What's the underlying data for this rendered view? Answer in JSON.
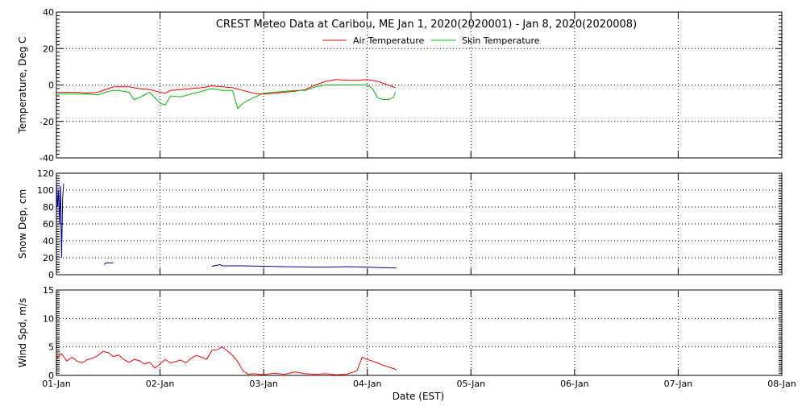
{
  "title": "CREST Meteo Data at Caribou, ME   Jan  1, 2020(2020001) - Jan  8, 2020(2020008)",
  "xlabel": "Date (EST)",
  "x_ticks": [
    "01-Jan",
    "02-Jan",
    "03-Jan",
    "04-Jan",
    "05-Jan",
    "06-Jan",
    "07-Jan",
    "08-Jan"
  ],
  "colors": {
    "air": "#ff0000",
    "skin": "#00bb00",
    "snow": "#000099",
    "wind": "#ff0000",
    "grid": "#000000"
  },
  "chart_data": [
    {
      "type": "line",
      "ylabel": "Temperature, Deg C",
      "ylim": [
        -40,
        40
      ],
      "y_ticks": [
        "40",
        "20",
        "0",
        "-20",
        "-40"
      ],
      "x_unit": "days since 01-Jan",
      "legend": "top-center",
      "series": [
        {
          "name": "Air Temperature",
          "x": [
            0.0,
            0.1,
            0.2,
            0.3,
            0.4,
            0.5,
            0.55,
            0.6,
            0.7,
            0.8,
            0.9,
            1.0,
            1.05,
            1.1,
            1.2,
            1.3,
            1.4,
            1.5,
            1.6,
            1.7,
            1.8,
            1.9,
            2.0,
            2.1,
            2.2,
            2.3,
            2.4,
            2.5,
            2.6,
            2.7,
            2.8,
            2.9,
            3.0,
            3.1,
            3.2,
            3.27
          ],
          "y": [
            -4,
            -4,
            -4,
            -4.5,
            -4,
            -2,
            -1,
            -1,
            -1,
            -2,
            -2.5,
            -4,
            -4.5,
            -3,
            -2.5,
            -2,
            -1.5,
            -0.5,
            -1,
            -1.5,
            -3,
            -4.5,
            -5,
            -4.5,
            -4,
            -3.5,
            -2.5,
            0,
            2,
            3,
            2.5,
            2.5,
            3,
            2,
            0,
            -1.5
          ]
        },
        {
          "name": "Skin Temperature",
          "x": [
            0.0,
            0.1,
            0.2,
            0.3,
            0.4,
            0.5,
            0.55,
            0.6,
            0.7,
            0.75,
            0.8,
            0.9,
            1.0,
            1.05,
            1.1,
            1.2,
            1.3,
            1.4,
            1.5,
            1.6,
            1.7,
            1.75,
            1.8,
            1.9,
            2.0,
            2.1,
            2.2,
            2.3,
            2.4,
            2.5,
            2.6,
            2.7,
            2.8,
            2.9,
            3.0,
            3.05,
            3.1,
            3.15,
            3.2,
            3.25,
            3.27
          ],
          "y": [
            -5,
            -5,
            -5,
            -5,
            -5.5,
            -3.5,
            -3,
            -3,
            -4,
            -8,
            -7,
            -4,
            -10,
            -11,
            -6,
            -6.5,
            -5,
            -3.5,
            -2,
            -3,
            -3,
            -13,
            -10,
            -7,
            -4.5,
            -4,
            -3.5,
            -3,
            -3,
            -1,
            0,
            0,
            0,
            0,
            0,
            -2,
            -7,
            -8,
            -8,
            -7,
            -4
          ]
        }
      ]
    },
    {
      "type": "line",
      "ylabel": "Snow Dep, cm",
      "ylim": [
        0,
        120
      ],
      "y_ticks": [
        "120",
        "100",
        "80",
        "60",
        "40",
        "20",
        "0"
      ],
      "x_unit": "days since 01-Jan",
      "series": [
        {
          "x": [
            0.0,
            0.01,
            0.02,
            0.03,
            0.04,
            0.05,
            0.06,
            0.07
          ],
          "y": [
            110,
            80,
            100,
            60,
            105,
            20,
            90,
            108
          ]
        },
        {
          "x": [
            0.46,
            0.48,
            0.5,
            0.55
          ],
          "y": [
            12,
            14,
            14,
            14
          ]
        },
        {
          "x": [
            1.5,
            1.55,
            1.58,
            1.6,
            1.8,
            2.0,
            2.2,
            2.5,
            2.6,
            2.8,
            3.0,
            3.1,
            3.28
          ],
          "y": [
            10,
            11,
            12,
            10.5,
            10.5,
            10,
            9.5,
            9,
            9,
            9.5,
            9,
            8.5,
            8
          ]
        }
      ]
    },
    {
      "type": "line",
      "ylabel": "Wind Spd, m/s",
      "ylim": [
        0,
        15
      ],
      "y_ticks": [
        "15",
        "10",
        "5",
        "0"
      ],
      "x_unit": "days since 01-Jan",
      "series": [
        {
          "x": [
            0.0,
            0.05,
            0.1,
            0.15,
            0.2,
            0.25,
            0.3,
            0.35,
            0.4,
            0.45,
            0.5,
            0.55,
            0.6,
            0.65,
            0.7,
            0.75,
            0.8,
            0.85,
            0.9,
            0.95,
            1.0,
            1.05,
            1.1,
            1.15,
            1.2,
            1.25,
            1.3,
            1.35,
            1.4,
            1.45,
            1.5,
            1.55,
            1.6,
            1.65,
            1.7,
            1.75,
            1.8,
            1.85,
            1.9,
            2.0,
            2.1,
            2.2,
            2.3,
            2.4,
            2.5,
            2.6,
            2.7,
            2.8,
            2.9,
            2.95,
            3.0,
            3.05,
            3.1,
            3.15,
            3.2,
            3.25,
            3.28
          ],
          "y": [
            3,
            3.8,
            2.5,
            3.2,
            2.5,
            2.2,
            2.8,
            3.0,
            3.5,
            4.2,
            4.0,
            3.3,
            3.6,
            2.8,
            2.3,
            2.8,
            2.6,
            2.0,
            2.3,
            1.3,
            2.0,
            2.8,
            2.2,
            2.4,
            2.7,
            2.2,
            3.0,
            3.5,
            3.2,
            2.8,
            4.4,
            4.5,
            5.0,
            4.3,
            3.5,
            2.4,
            0.8,
            0.2,
            0.3,
            0.1,
            0.4,
            0.2,
            0.6,
            0.3,
            0.2,
            0.3,
            0.1,
            0.2,
            0.8,
            3.2,
            2.8,
            2.5,
            2.2,
            1.8,
            1.5,
            1.2,
            1.0
          ]
        }
      ]
    }
  ]
}
